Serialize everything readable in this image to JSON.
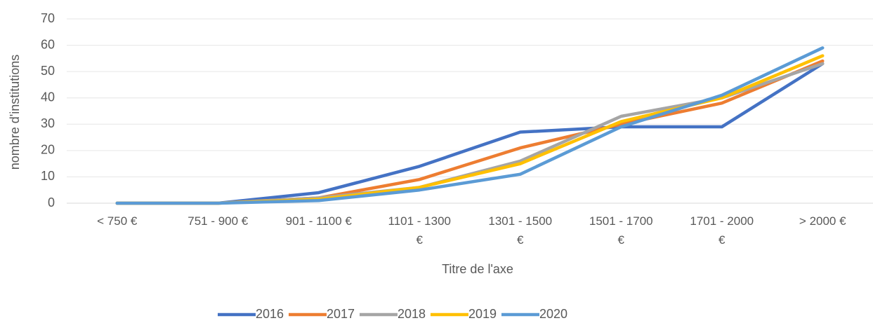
{
  "chart_data": {
    "type": "line",
    "x_label": "Titre de l'axe",
    "y_label": "nombre d'institutions",
    "categories": [
      "< 750 €",
      "751 - 900 €",
      "901 - 1100 €",
      "1101 - 1300 €",
      "1301 - 1500 €",
      "1501 - 1700 €",
      "1701 - 2000 €",
      "> 2000 €"
    ],
    "series": [
      {
        "name": "2016",
        "color": "#4472c4",
        "values": [
          0,
          0,
          4,
          14,
          27,
          29,
          29,
          53
        ]
      },
      {
        "name": "2017",
        "color": "#ed7d31",
        "values": [
          0,
          0,
          2,
          9,
          21,
          30,
          38,
          54
        ]
      },
      {
        "name": "2018",
        "color": "#a5a5a5",
        "values": [
          0,
          0,
          2,
          6,
          16,
          33,
          40,
          53
        ]
      },
      {
        "name": "2019",
        "color": "#ffc000",
        "values": [
          0,
          0,
          1.5,
          6,
          15,
          31,
          40,
          56
        ]
      },
      {
        "name": "2020",
        "color": "#5b9bd5",
        "values": [
          0,
          0,
          1,
          5,
          11,
          29,
          41,
          59
        ]
      }
    ],
    "ylim": [
      0,
      70
    ],
    "yticks": [
      0,
      10,
      20,
      30,
      40,
      50,
      60,
      70
    ],
    "grid": true,
    "legend": "bottom"
  }
}
